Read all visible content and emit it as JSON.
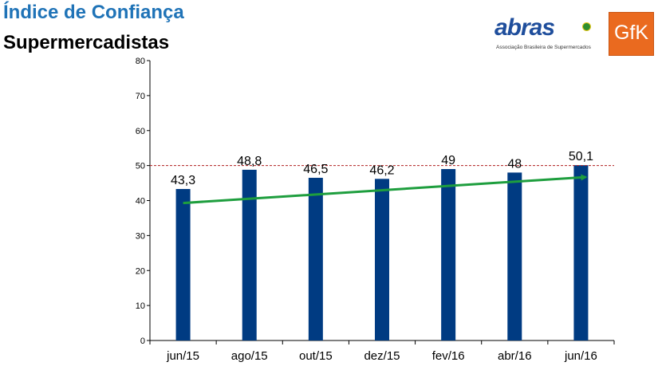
{
  "header": {
    "title_line1": "Índice de Confiança",
    "title_line2": "Supermercadistas"
  },
  "logos": {
    "abras": {
      "wordmark": "abras",
      "subtitle": "Associação Brasileira de Supermercados",
      "color": "#1f4e9c"
    },
    "gfk": {
      "wordmark": "GfK",
      "color": "#ea6a1f"
    }
  },
  "colors": {
    "title_accent": "#1f73b7",
    "bar": "#003b82",
    "trend_line": "#1e9e3e",
    "reference_line": "#b02020"
  },
  "chart_data": {
    "type": "bar",
    "title": "",
    "xlabel": "",
    "ylabel": "",
    "categories": [
      "jun/15",
      "ago/15",
      "out/15",
      "dez/15",
      "fev/16",
      "abr/16",
      "jun/16"
    ],
    "series": [
      {
        "values": [
          43.3,
          48.8,
          46.5,
          46.2,
          49,
          48,
          50.1
        ],
        "labels": [
          "43,3",
          "48,8",
          "46,5",
          "46,2",
          "49",
          "48",
          "50,1"
        ]
      }
    ],
    "ylim": [
      0,
      80
    ],
    "yticks": [
      0,
      10,
      20,
      30,
      40,
      50,
      60,
      70,
      80
    ],
    "reference_line": {
      "y": 50,
      "style": "dashed"
    },
    "trend_line": {
      "start_y": 39.3,
      "end_y": 46.7,
      "arrow": true
    },
    "grid": false,
    "legend": "none"
  }
}
